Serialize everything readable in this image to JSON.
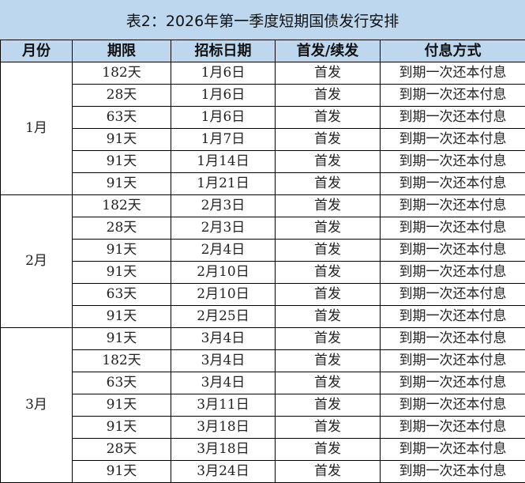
{
  "title": "表2：2026年第一季度短期国债发行安排",
  "headers": [
    "月份",
    "期限",
    "招标日期",
    "首发/续发",
    "付息方式"
  ],
  "groups": [
    {
      "month": "1月",
      "rows": [
        {
          "term": "182天",
          "date": "1月6日",
          "type": "首发",
          "payment": "到期一次还本付息"
        },
        {
          "term": "28天",
          "date": "1月6日",
          "type": "首发",
          "payment": "到期一次还本付息"
        },
        {
          "term": "63天",
          "date": "1月6日",
          "type": "首发",
          "payment": "到期一次还本付息"
        },
        {
          "term": "91天",
          "date": "1月7日",
          "type": "首发",
          "payment": "到期一次还本付息"
        },
        {
          "term": "91天",
          "date": "1月14日",
          "type": "首发",
          "payment": "到期一次还本付息"
        },
        {
          "term": "91天",
          "date": "1月21日",
          "type": "首发",
          "payment": "到期一次还本付息"
        }
      ]
    },
    {
      "month": "2月",
      "rows": [
        {
          "term": "182天",
          "date": "2月3日",
          "type": "首发",
          "payment": "到期一次还本付息"
        },
        {
          "term": "28天",
          "date": "2月3日",
          "type": "首发",
          "payment": "到期一次还本付息"
        },
        {
          "term": "91天",
          "date": "2月4日",
          "type": "首发",
          "payment": "到期一次还本付息"
        },
        {
          "term": "91天",
          "date": "2月10日",
          "type": "首发",
          "payment": "到期一次还本付息"
        },
        {
          "term": "63天",
          "date": "2月10日",
          "type": "首发",
          "payment": "到期一次还本付息"
        },
        {
          "term": "91天",
          "date": "2月25日",
          "type": "首发",
          "payment": "到期一次还本付息"
        }
      ]
    },
    {
      "month": "3月",
      "rows": [
        {
          "term": "91天",
          "date": "3月4日",
          "type": "首发",
          "payment": "到期一次还本付息"
        },
        {
          "term": "182天",
          "date": "3月4日",
          "type": "首发",
          "payment": "到期一次还本付息"
        },
        {
          "term": "63天",
          "date": "3月4日",
          "type": "首发",
          "payment": "到期一次还本付息"
        },
        {
          "term": "91天",
          "date": "3月11日",
          "type": "首发",
          "payment": "到期一次还本付息"
        },
        {
          "term": "91天",
          "date": "3月18日",
          "type": "首发",
          "payment": "到期一次还本付息"
        },
        {
          "term": "28天",
          "date": "3月18日",
          "type": "首发",
          "payment": "到期一次还本付息"
        },
        {
          "term": "91天",
          "date": "3月24日",
          "type": "首发",
          "payment": "到期一次还本付息"
        }
      ]
    }
  ]
}
